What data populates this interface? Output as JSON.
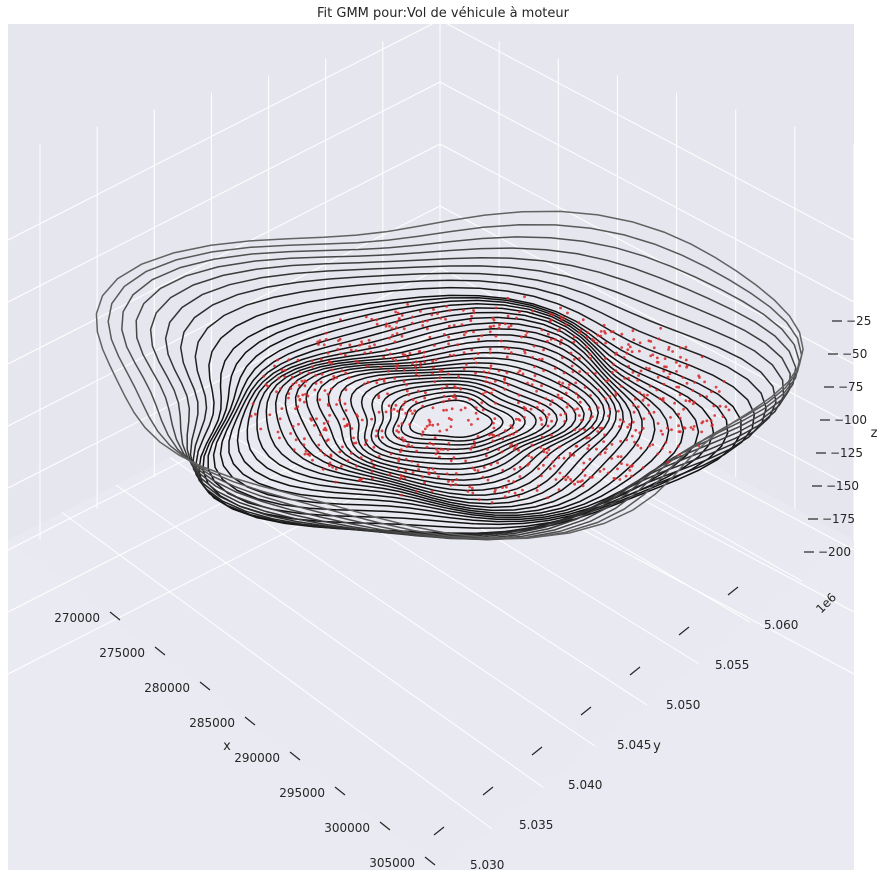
{
  "chart_data": {
    "type": "3d-contour-scatter",
    "title": "Fit GMM pour:Vol de véhicule à moteur",
    "xlabel": "x",
    "ylabel": "y",
    "zlabel": "z",
    "y_offset_label": "1e6",
    "x_ticks": [
      "270000",
      "275000",
      "280000",
      "285000",
      "290000",
      "295000",
      "300000",
      "305000"
    ],
    "y_ticks": [
      "5.030",
      "5.035",
      "5.040",
      "5.045",
      "5.050",
      "5.055",
      "5.060"
    ],
    "z_ticks": [
      "−25",
      "−50",
      "−75",
      "−100",
      "−125",
      "−150",
      "−175",
      "−200"
    ],
    "xlim": [
      267500,
      307500
    ],
    "ylim": [
      5.028,
      5.063
    ],
    "zlim": [
      -210,
      -20
    ],
    "grid": true,
    "series": [
      {
        "kind": "contour",
        "values_description": "GMM negative log-likelihood contour levels"
      },
      {
        "kind": "scatter"
      }
    ],
    "colors": {
      "pane": "#eaeaf2",
      "pane_side": "#e3e3ec",
      "grid": "#ffffff",
      "contour": "#111111",
      "points": "#d62728",
      "text": "#262626"
    }
  }
}
